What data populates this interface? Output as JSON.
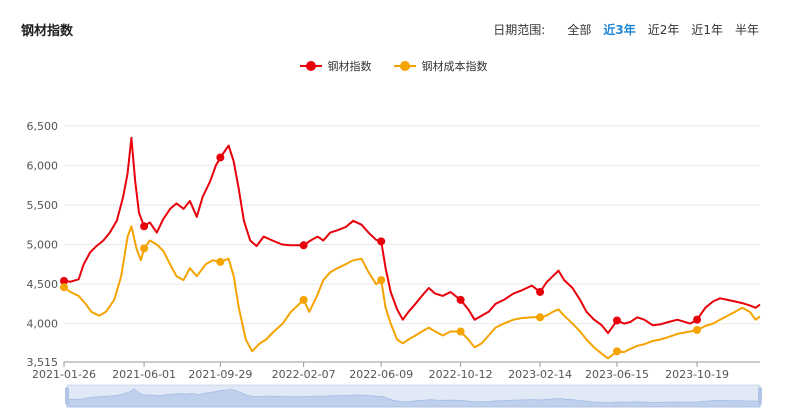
{
  "header": {
    "title": "钢材指数",
    "range_label": "日期范围:",
    "range_options": [
      "全部",
      "近3年",
      "近2年",
      "近1年",
      "半年"
    ],
    "active_range": "近3年"
  },
  "colors": {
    "steel": "#e8000b",
    "cost": "#f5a300",
    "grid": "#e8e8e8",
    "axis": "#999999"
  },
  "chart_data": {
    "type": "line",
    "title": "",
    "xlabel": "",
    "ylabel": "",
    "ylim": [
      3515,
      6700
    ],
    "yticks": [
      3515,
      4000,
      4500,
      5000,
      5500,
      6000,
      6500
    ],
    "ytick_labels": [
      "3,515",
      "4,000",
      "4,500",
      "5,000",
      "5,500",
      "6,000",
      "6,500"
    ],
    "xlim": [
      "2021-01-26",
      "2024-01-26"
    ],
    "xticks": [
      "2021-01-26",
      "2021-06-01",
      "2021-09-29",
      "2022-02-07",
      "2022-06-09",
      "2022-10-12",
      "2023-02-14",
      "2023-06-15",
      "2023-10-19"
    ],
    "legend_position": "top-center",
    "grid": true,
    "series": [
      {
        "name": "钢材指数",
        "color": "#e8000b",
        "points": [
          [
            "2021-01-26",
            4540
          ],
          [
            "2021-02-05",
            4530
          ],
          [
            "2021-02-18",
            4560
          ],
          [
            "2021-02-26",
            4750
          ],
          [
            "2021-03-08",
            4900
          ],
          [
            "2021-03-18",
            4980
          ],
          [
            "2021-03-29",
            5050
          ],
          [
            "2021-04-08",
            5150
          ],
          [
            "2021-04-19",
            5300
          ],
          [
            "2021-04-29",
            5600
          ],
          [
            "2021-05-06",
            5900
          ],
          [
            "2021-05-12",
            6350
          ],
          [
            "2021-05-18",
            5800
          ],
          [
            "2021-05-24",
            5400
          ],
          [
            "2021-06-01",
            5230
          ],
          [
            "2021-06-10",
            5280
          ],
          [
            "2021-06-21",
            5150
          ],
          [
            "2021-07-01",
            5320
          ],
          [
            "2021-07-12",
            5450
          ],
          [
            "2021-07-22",
            5520
          ],
          [
            "2021-08-02",
            5450
          ],
          [
            "2021-08-12",
            5550
          ],
          [
            "2021-08-23",
            5350
          ],
          [
            "2021-09-01",
            5600
          ],
          [
            "2021-09-13",
            5800
          ],
          [
            "2021-09-22",
            6000
          ],
          [
            "2021-09-29",
            6100
          ],
          [
            "2021-10-12",
            6250
          ],
          [
            "2021-10-20",
            6050
          ],
          [
            "2021-10-28",
            5700
          ],
          [
            "2021-11-05",
            5300
          ],
          [
            "2021-11-15",
            5050
          ],
          [
            "2021-11-25",
            4980
          ],
          [
            "2021-12-06",
            5100
          ],
          [
            "2021-12-20",
            5050
          ],
          [
            "2022-01-04",
            5000
          ],
          [
            "2022-01-17",
            4990
          ],
          [
            "2022-02-07",
            4990
          ],
          [
            "2022-02-18",
            5050
          ],
          [
            "2022-03-01",
            5100
          ],
          [
            "2022-03-10",
            5050
          ],
          [
            "2022-03-21",
            5150
          ],
          [
            "2022-04-01",
            5180
          ],
          [
            "2022-04-14",
            5220
          ],
          [
            "2022-04-26",
            5300
          ],
          [
            "2022-05-09",
            5250
          ],
          [
            "2022-05-20",
            5150
          ],
          [
            "2022-06-01",
            5060
          ],
          [
            "2022-06-09",
            5040
          ],
          [
            "2022-06-16",
            4700
          ],
          [
            "2022-06-24",
            4400
          ],
          [
            "2022-07-04",
            4180
          ],
          [
            "2022-07-13",
            4050
          ],
          [
            "2022-07-22",
            4150
          ],
          [
            "2022-08-02",
            4250
          ],
          [
            "2022-08-12",
            4350
          ],
          [
            "2022-08-23",
            4450
          ],
          [
            "2022-09-02",
            4380
          ],
          [
            "2022-09-14",
            4350
          ],
          [
            "2022-09-26",
            4400
          ],
          [
            "2022-10-12",
            4300
          ],
          [
            "2022-10-24",
            4180
          ],
          [
            "2022-11-03",
            4050
          ],
          [
            "2022-11-14",
            4100
          ],
          [
            "2022-11-25",
            4150
          ],
          [
            "2022-12-06",
            4250
          ],
          [
            "2022-12-19",
            4300
          ],
          [
            "2023-01-03",
            4380
          ],
          [
            "2023-01-16",
            4420
          ],
          [
            "2023-02-01",
            4480
          ],
          [
            "2023-02-14",
            4400
          ],
          [
            "2023-02-24",
            4520
          ],
          [
            "2023-03-06",
            4600
          ],
          [
            "2023-03-15",
            4670
          ],
          [
            "2023-03-24",
            4550
          ],
          [
            "2023-04-06",
            4450
          ],
          [
            "2023-04-18",
            4300
          ],
          [
            "2023-04-28",
            4150
          ],
          [
            "2023-05-10",
            4050
          ],
          [
            "2023-05-22",
            3980
          ],
          [
            "2023-06-01",
            3880
          ],
          [
            "2023-06-15",
            4040
          ],
          [
            "2023-06-26",
            4000
          ],
          [
            "2023-07-06",
            4020
          ],
          [
            "2023-07-17",
            4080
          ],
          [
            "2023-07-28",
            4050
          ],
          [
            "2023-08-10",
            3980
          ],
          [
            "2023-08-22",
            3990
          ],
          [
            "2023-09-04",
            4020
          ],
          [
            "2023-09-18",
            4050
          ],
          [
            "2023-10-08",
            4000
          ],
          [
            "2023-10-19",
            4050
          ],
          [
            "2023-11-01",
            4200
          ],
          [
            "2023-11-13",
            4280
          ],
          [
            "2023-11-24",
            4320
          ],
          [
            "2023-12-06",
            4300
          ],
          [
            "2023-12-18",
            4280
          ],
          [
            "2023-12-29",
            4260
          ],
          [
            "2024-01-10",
            4230
          ],
          [
            "2024-01-19",
            4200
          ],
          [
            "2024-01-26",
            4240
          ]
        ],
        "markers": [
          [
            "2021-01-26",
            4540
          ],
          [
            "2021-06-01",
            5230
          ],
          [
            "2021-09-29",
            6100
          ],
          [
            "2022-02-07",
            4990
          ],
          [
            "2022-06-09",
            5040
          ],
          [
            "2022-10-12",
            4300
          ],
          [
            "2023-02-14",
            4400
          ],
          [
            "2023-06-15",
            4040
          ],
          [
            "2023-10-19",
            4050
          ]
        ]
      },
      {
        "name": "钢材成本指数",
        "color": "#f5a300",
        "points": [
          [
            "2021-01-26",
            4460
          ],
          [
            "2021-02-05",
            4400
          ],
          [
            "2021-02-18",
            4350
          ],
          [
            "2021-03-01",
            4250
          ],
          [
            "2021-03-10",
            4150
          ],
          [
            "2021-03-22",
            4100
          ],
          [
            "2021-04-02",
            4150
          ],
          [
            "2021-04-15",
            4300
          ],
          [
            "2021-04-26",
            4600
          ],
          [
            "2021-05-06",
            5100
          ],
          [
            "2021-05-12",
            5230
          ],
          [
            "2021-05-20",
            4950
          ],
          [
            "2021-05-27",
            4800
          ],
          [
            "2021-06-01",
            4950
          ],
          [
            "2021-06-10",
            5050
          ],
          [
            "2021-06-21",
            5000
          ],
          [
            "2021-07-01",
            4920
          ],
          [
            "2021-07-12",
            4750
          ],
          [
            "2021-07-22",
            4600
          ],
          [
            "2021-08-02",
            4550
          ],
          [
            "2021-08-12",
            4700
          ],
          [
            "2021-08-23",
            4600
          ],
          [
            "2021-09-06",
            4750
          ],
          [
            "2021-09-17",
            4800
          ],
          [
            "2021-09-29",
            4780
          ],
          [
            "2021-10-12",
            4820
          ],
          [
            "2021-10-20",
            4600
          ],
          [
            "2021-10-28",
            4200
          ],
          [
            "2021-11-08",
            3800
          ],
          [
            "2021-11-18",
            3650
          ],
          [
            "2021-11-30",
            3750
          ],
          [
            "2021-12-10",
            3800
          ],
          [
            "2021-12-22",
            3900
          ],
          [
            "2022-01-05",
            4000
          ],
          [
            "2022-01-18",
            4150
          ],
          [
            "2022-02-07",
            4300
          ],
          [
            "2022-02-16",
            4150
          ],
          [
            "2022-02-28",
            4350
          ],
          [
            "2022-03-10",
            4550
          ],
          [
            "2022-03-21",
            4650
          ],
          [
            "2022-04-01",
            4700
          ],
          [
            "2022-04-14",
            4750
          ],
          [
            "2022-04-26",
            4800
          ],
          [
            "2022-05-09",
            4820
          ],
          [
            "2022-05-20",
            4650
          ],
          [
            "2022-06-01",
            4500
          ],
          [
            "2022-06-09",
            4550
          ],
          [
            "2022-06-16",
            4200
          ],
          [
            "2022-06-24",
            4000
          ],
          [
            "2022-07-04",
            3800
          ],
          [
            "2022-07-13",
            3750
          ],
          [
            "2022-07-22",
            3800
          ],
          [
            "2022-08-02",
            3850
          ],
          [
            "2022-08-12",
            3900
          ],
          [
            "2022-08-23",
            3950
          ],
          [
            "2022-09-02",
            3900
          ],
          [
            "2022-09-14",
            3850
          ],
          [
            "2022-09-26",
            3900
          ],
          [
            "2022-10-12",
            3900
          ],
          [
            "2022-10-24",
            3800
          ],
          [
            "2022-11-03",
            3700
          ],
          [
            "2022-11-14",
            3750
          ],
          [
            "2022-11-25",
            3850
          ],
          [
            "2022-12-06",
            3950
          ],
          [
            "2022-12-19",
            4000
          ],
          [
            "2023-01-03",
            4050
          ],
          [
            "2023-01-16",
            4070
          ],
          [
            "2023-02-01",
            4080
          ],
          [
            "2023-02-14",
            4080
          ],
          [
            "2023-02-24",
            4100
          ],
          [
            "2023-03-06",
            4150
          ],
          [
            "2023-03-15",
            4180
          ],
          [
            "2023-03-24",
            4100
          ],
          [
            "2023-04-06",
            4000
          ],
          [
            "2023-04-18",
            3900
          ],
          [
            "2023-04-28",
            3800
          ],
          [
            "2023-05-10",
            3700
          ],
          [
            "2023-05-22",
            3620
          ],
          [
            "2023-06-01",
            3560
          ],
          [
            "2023-06-15",
            3650
          ],
          [
            "2023-06-26",
            3640
          ],
          [
            "2023-07-06",
            3680
          ],
          [
            "2023-07-17",
            3720
          ],
          [
            "2023-07-28",
            3740
          ],
          [
            "2023-08-10",
            3780
          ],
          [
            "2023-08-22",
            3800
          ],
          [
            "2023-09-04",
            3830
          ],
          [
            "2023-09-18",
            3870
          ],
          [
            "2023-10-08",
            3900
          ],
          [
            "2023-10-19",
            3920
          ],
          [
            "2023-11-01",
            3970
          ],
          [
            "2023-11-13",
            4000
          ],
          [
            "2023-11-24",
            4050
          ],
          [
            "2023-12-06",
            4100
          ],
          [
            "2023-12-18",
            4150
          ],
          [
            "2023-12-29",
            4200
          ],
          [
            "2024-01-10",
            4150
          ],
          [
            "2024-01-19",
            4050
          ],
          [
            "2024-01-26",
            4090
          ]
        ],
        "markers": [
          [
            "2021-01-26",
            4460
          ],
          [
            "2021-06-01",
            4950
          ],
          [
            "2021-09-29",
            4780
          ],
          [
            "2022-02-07",
            4300
          ],
          [
            "2022-06-09",
            4550
          ],
          [
            "2022-10-12",
            3900
          ],
          [
            "2023-02-14",
            4080
          ],
          [
            "2023-06-15",
            3650
          ],
          [
            "2023-10-19",
            3920
          ]
        ]
      }
    ]
  }
}
